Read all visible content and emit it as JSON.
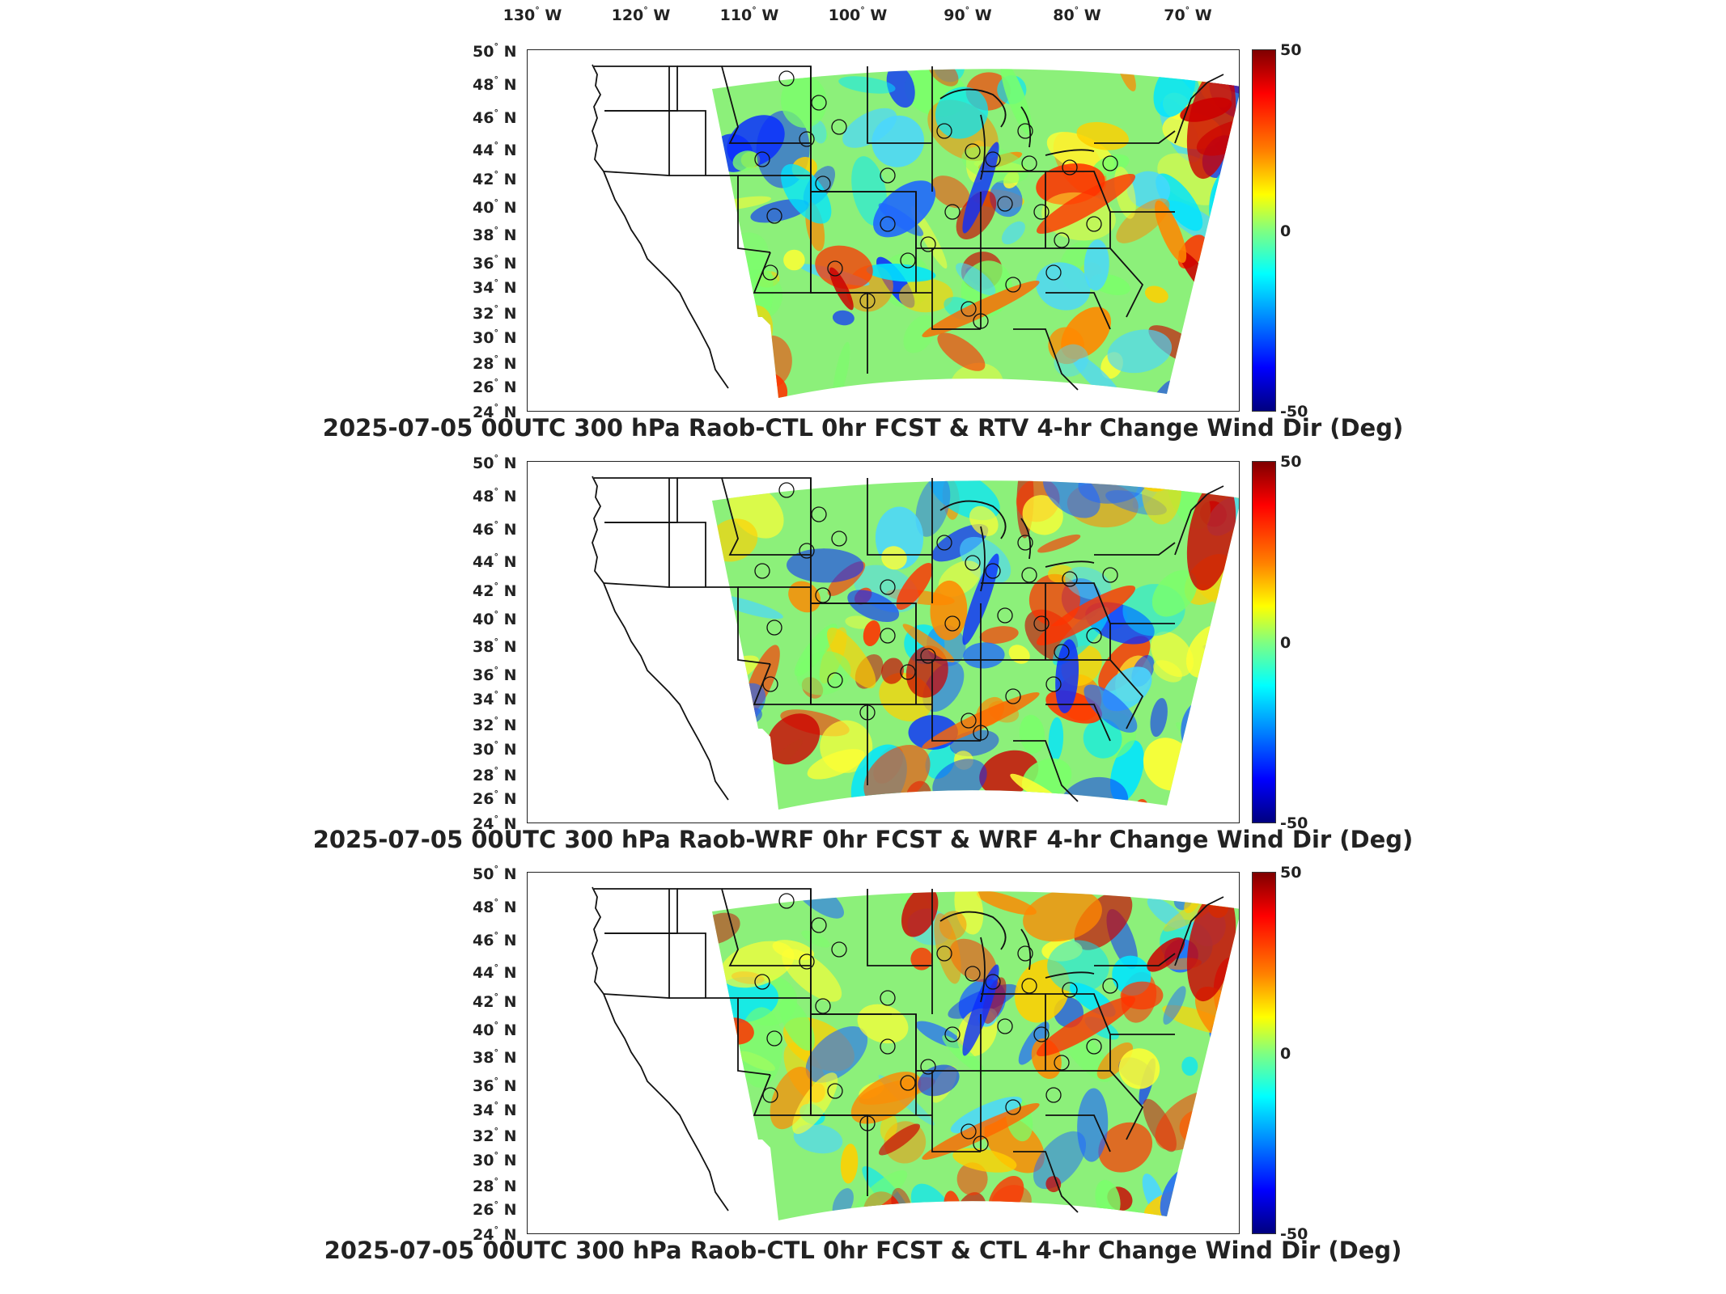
{
  "lon_labels": [
    {
      "deg": "130",
      "hemi": "W"
    },
    {
      "deg": "120",
      "hemi": "W"
    },
    {
      "deg": "110",
      "hemi": "W"
    },
    {
      "deg": "100",
      "hemi": "W"
    },
    {
      "deg": "90",
      "hemi": "W"
    },
    {
      "deg": "80",
      "hemi": "W"
    },
    {
      "deg": "70",
      "hemi": "W"
    }
  ],
  "lat_labels": [
    {
      "deg": "50",
      "hemi": "N"
    },
    {
      "deg": "48",
      "hemi": "N"
    },
    {
      "deg": "46",
      "hemi": "N"
    },
    {
      "deg": "44",
      "hemi": "N"
    },
    {
      "deg": "42",
      "hemi": "N"
    },
    {
      "deg": "40",
      "hemi": "N"
    },
    {
      "deg": "38",
      "hemi": "N"
    },
    {
      "deg": "36",
      "hemi": "N"
    },
    {
      "deg": "34",
      "hemi": "N"
    },
    {
      "deg": "32",
      "hemi": "N"
    },
    {
      "deg": "30",
      "hemi": "N"
    },
    {
      "deg": "28",
      "hemi": "N"
    },
    {
      "deg": "26",
      "hemi": "N"
    },
    {
      "deg": "24",
      "hemi": "N"
    }
  ],
  "colorbar": {
    "max": "50",
    "mid": "0",
    "min": "-50",
    "colors": [
      "#7f0000",
      "#ff0000",
      "#ff8000",
      "#ffff00",
      "#80ff80",
      "#00ffff",
      "#0080ff",
      "#0000ff",
      "#00007f"
    ]
  },
  "panels": [
    {
      "title": "2025-07-05 00UTC 300 hPa Raob-CTL 0hr FCST & RTV 4-hr Change Wind Dir (Deg)"
    },
    {
      "title": "2025-07-05 00UTC 300 hPa Raob-WRF 0hr FCST & WRF 4-hr Change Wind Dir (Deg)"
    },
    {
      "title": "2025-07-05 00UTC 300 hPa Raob-CTL 0hr FCST & CTL 4-hr Change Wind Dir (Deg)"
    }
  ]
}
